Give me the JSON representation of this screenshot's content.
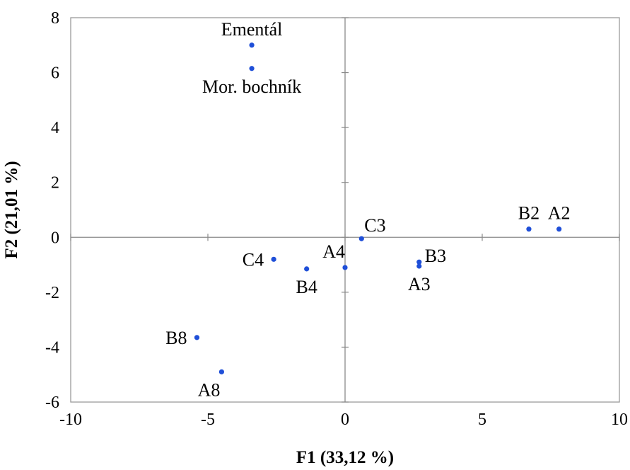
{
  "chart_data": {
    "type": "scatter",
    "title": "",
    "xlabel": "F1 (33,12 %)",
    "ylabel": "F2 (21,01 %)",
    "xlim": [
      -10,
      10
    ],
    "ylim": [
      -6,
      8
    ],
    "xticks": [
      -10,
      -5,
      0,
      5,
      10
    ],
    "yticks": [
      -6,
      -4,
      -2,
      0,
      2,
      4,
      6,
      8
    ],
    "xtick_labels": [
      "-10",
      "-5",
      "0",
      "5",
      "10"
    ],
    "ytick_labels": [
      "-6",
      "-4",
      "-2",
      "0",
      "2",
      "4",
      "6",
      "8"
    ],
    "grid": false,
    "zero_lines": true,
    "marker_color": "#1f4fd8",
    "points": [
      {
        "label": "Ementál",
        "x": -3.4,
        "y": 7.0,
        "label_pos": "above"
      },
      {
        "label": "Mor. bochník",
        "x": -3.4,
        "y": 6.15,
        "label_pos": "below"
      },
      {
        "label": "B2",
        "x": 6.7,
        "y": 0.3,
        "label_pos": "above"
      },
      {
        "label": "A2",
        "x": 7.8,
        "y": 0.3,
        "label_pos": "above"
      },
      {
        "label": "C3",
        "x": 0.6,
        "y": -0.05,
        "label_pos": "above-right"
      },
      {
        "label": "A4",
        "x": 0.0,
        "y": -1.1,
        "label_pos": "above-left"
      },
      {
        "label": "C4",
        "x": -2.6,
        "y": -0.8,
        "label_pos": "left"
      },
      {
        "label": "B4",
        "x": -1.4,
        "y": -1.15,
        "label_pos": "below"
      },
      {
        "label": "B3",
        "x": 2.7,
        "y": -0.9,
        "label_pos": "right"
      },
      {
        "label": "A3",
        "x": 2.7,
        "y": -1.05,
        "label_pos": "below"
      },
      {
        "label": "B8",
        "x": -5.4,
        "y": -3.65,
        "label_pos": "left"
      },
      {
        "label": "A8",
        "x": -4.5,
        "y": -4.9,
        "label_pos": "below-left"
      }
    ]
  }
}
